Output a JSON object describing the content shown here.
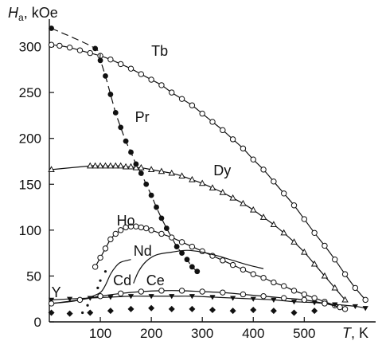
{
  "chart_data": {
    "type": "scatter",
    "ylabel": "H",
    "ylabel_sub": "a",
    "ylabel_unit": ", kOe",
    "xlabel": "T",
    "xlabel_unit": ", K",
    "xlim": [
      0,
      640
    ],
    "ylim": [
      0,
      330
    ],
    "xticks": [
      100,
      200,
      300,
      400,
      500
    ],
    "yticks": [
      0,
      50,
      100,
      150,
      200,
      250,
      300
    ],
    "grid": false,
    "legend": "none",
    "series": [
      {
        "name": "Tb",
        "marker": "circle-open",
        "line": "solid",
        "label_pos": [
          200,
          290
        ],
        "x": [
          4,
          20,
          40,
          60,
          80,
          100,
          120,
          140,
          160,
          180,
          200,
          220,
          240,
          260,
          280,
          300,
          320,
          340,
          360,
          380,
          400,
          420,
          440,
          460,
          480,
          500,
          520,
          540,
          560,
          580,
          600,
          620
        ],
        "y": [
          302,
          301,
          299,
          296,
          293,
          290,
          286,
          281,
          276,
          270,
          264,
          258,
          250,
          243,
          236,
          227,
          218,
          209,
          199,
          189,
          177,
          166,
          153,
          140,
          127,
          112,
          97,
          83,
          68,
          52,
          37,
          24
        ]
      },
      {
        "name": "Dy",
        "marker": "triangle-open",
        "line": "solid",
        "label_pos": [
          322,
          160
        ],
        "x": [
          4,
          80,
          90,
          100,
          110,
          120,
          130,
          140,
          150,
          160,
          170,
          180,
          200,
          220,
          240,
          260,
          280,
          300,
          320,
          340,
          360,
          380,
          400,
          420,
          440,
          460,
          480,
          500,
          520,
          540,
          560,
          580
        ],
        "y": [
          166,
          170,
          170,
          170,
          170,
          170,
          170,
          170,
          169,
          169,
          168,
          168,
          166,
          164,
          162,
          159,
          155,
          151,
          146,
          141,
          135,
          129,
          122,
          114,
          106,
          97,
          87,
          76,
          63,
          50,
          37,
          24
        ]
      },
      {
        "name": "Pr",
        "marker": "dot-filled",
        "line": "dashed",
        "label_pos": [
          168,
          218
        ],
        "x": [
          4,
          90,
          100,
          110,
          120,
          130,
          140,
          150,
          160,
          170,
          180,
          190,
          200,
          210,
          220,
          230,
          240,
          250,
          260,
          270,
          280,
          290
        ],
        "y": [
          320,
          298,
          285,
          268,
          248,
          228,
          212,
          197,
          185,
          172,
          162,
          150,
          138,
          125,
          113,
          102,
          92,
          82,
          75,
          68,
          60,
          55
        ]
      },
      {
        "name": "Ho",
        "marker": "circle-open",
        "line": "solid",
        "label_pos": [
          132,
          105
        ],
        "x": [
          90,
          100,
          110,
          120,
          130,
          140,
          150,
          160,
          170,
          180,
          190,
          200,
          220,
          240,
          260,
          280,
          300,
          320,
          340,
          360,
          380,
          400,
          420,
          440,
          460,
          480,
          500,
          520,
          540,
          560,
          580
        ],
        "y": [
          60,
          70,
          80,
          90,
          96,
          100,
          103,
          104,
          104,
          103,
          102,
          100,
          96,
          92,
          87,
          82,
          77,
          72,
          67,
          62,
          57,
          52,
          48,
          43,
          39,
          34,
          30,
          26,
          22,
          18,
          14
        ]
      },
      {
        "name": "Nd",
        "marker": "none",
        "line": "solid",
        "label_pos": [
          165,
          72
        ],
        "x": [
          4,
          40,
          60,
          80,
          100,
          110,
          120,
          130,
          140,
          160
        ],
        "y": [
          20,
          22,
          24,
          27,
          32,
          40,
          52,
          60,
          65,
          68
        ]
      },
      {
        "name": "Cd",
        "marker": "dot-small",
        "line": "none",
        "label_pos": [
          125,
          40
        ],
        "x": [
          65,
          75,
          85,
          95,
          100,
          110
        ],
        "y": [
          10,
          18,
          27,
          37,
          45,
          55
        ]
      },
      {
        "name": "Ce",
        "marker": "none",
        "line": "solid",
        "label_pos": [
          190,
          40
        ],
        "x": [
          165,
          175,
          190,
          210,
          240,
          270,
          300,
          330,
          360,
          390,
          420
        ],
        "y": [
          42,
          55,
          66,
          73,
          76,
          78,
          76,
          72,
          67,
          62,
          58
        ]
      },
      {
        "name": "Y",
        "marker": "triangle-filled",
        "line": "solid",
        "label_pos": [
          4,
          27
        ],
        "x": [
          4,
          40,
          80,
          120,
          160,
          200,
          240,
          280,
          320,
          360,
          400,
          440,
          480,
          520,
          560,
          600,
          620
        ],
        "y": [
          24,
          25,
          26,
          27,
          28,
          28,
          28,
          28,
          27,
          26,
          25,
          24,
          22,
          21,
          19,
          17,
          15
        ]
      },
      {
        "name": "",
        "marker": "circle-open",
        "line": "solid",
        "x": [
          4,
          60,
          100,
          140,
          180,
          220,
          260,
          300,
          340,
          380,
          420,
          460,
          500,
          540,
          570
        ],
        "y": [
          20,
          24,
          28,
          31,
          33,
          34,
          34,
          33,
          32,
          30,
          28,
          26,
          24,
          20,
          16
        ]
      },
      {
        "name": "",
        "marker": "diamond-filled",
        "line": "none",
        "x": [
          4,
          40,
          80,
          120,
          160,
          200,
          240,
          280,
          320,
          360,
          400,
          440,
          480,
          520
        ],
        "y": [
          10,
          9,
          10,
          12,
          14,
          15,
          14,
          14,
          13,
          12,
          13,
          12,
          10,
          12
        ]
      }
    ]
  }
}
